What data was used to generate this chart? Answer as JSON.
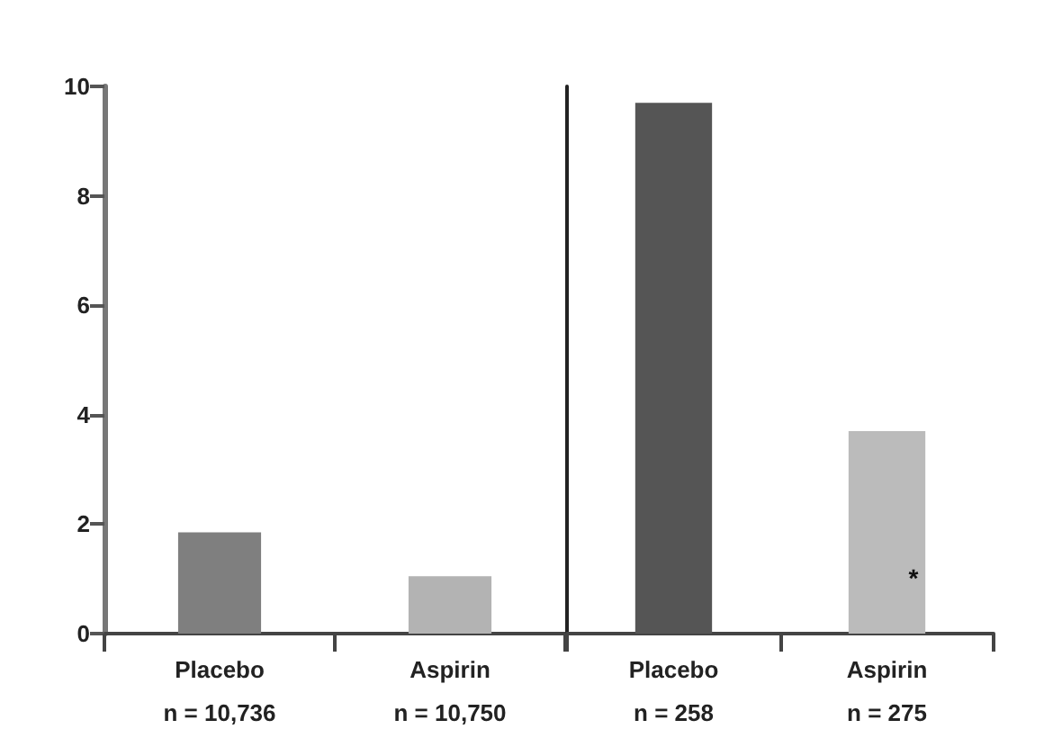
{
  "chart_data": [
    {
      "type": "bar",
      "categories": [
        "Placebo\nn = 10,736",
        "Aspirin\nn = 10,750"
      ],
      "values": [
        1.85,
        1.05
      ],
      "colors": [
        "#7f7f7f",
        "#b3b3b3"
      ],
      "ylim": [
        0,
        10
      ],
      "yticks": [
        0,
        2,
        4,
        6,
        8,
        10
      ],
      "grid": false
    },
    {
      "type": "bar",
      "categories": [
        "Placebo\nn = 258",
        "Aspirin\nn = 275"
      ],
      "values": [
        9.7,
        3.7
      ],
      "colors": [
        "#555555",
        "#bbbbbb"
      ],
      "ylim": [
        0,
        10
      ],
      "yticks": [
        0,
        2,
        4,
        6,
        8,
        10
      ],
      "grid": false,
      "tick_labels": "x",
      "annotations": [
        "*"
      ]
    }
  ]
}
